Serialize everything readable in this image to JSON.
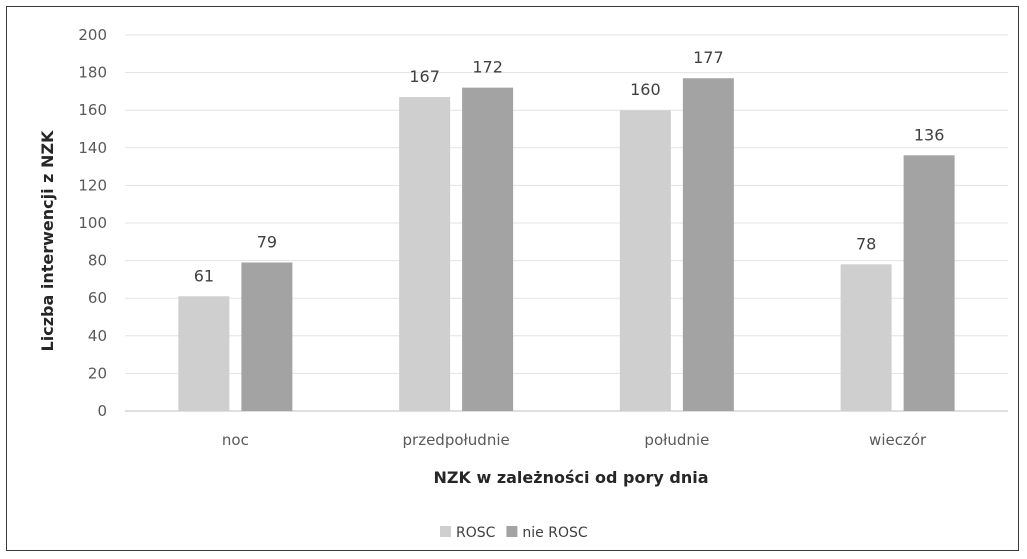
{
  "chart_data": {
    "type": "bar",
    "title": "",
    "xlabel": "NZK w zależności od pory dnia",
    "ylabel": "Liczba interwencji z NZK",
    "categories": [
      "noc",
      "przedpołudnie",
      "południe",
      "wieczór"
    ],
    "series": [
      {
        "name": "ROSC",
        "values": [
          61,
          167,
          160,
          78
        ],
        "color": "#cfcfcf"
      },
      {
        "name": "nie ROSC",
        "values": [
          79,
          172,
          177,
          136
        ],
        "color": "#a3a3a3"
      }
    ],
    "ylim": [
      0,
      200
    ],
    "yticks": [
      0,
      20,
      40,
      60,
      80,
      100,
      120,
      140,
      160,
      180,
      200
    ],
    "grid": true,
    "legend_position": "bottom",
    "data_labels": true
  }
}
